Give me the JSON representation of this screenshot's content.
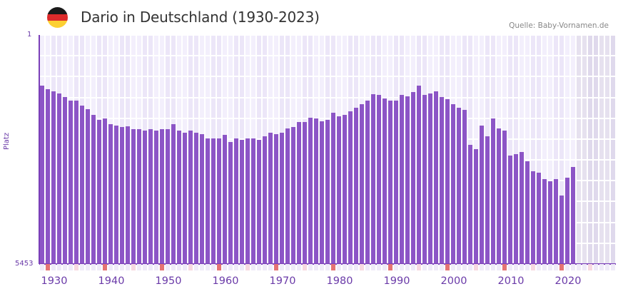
{
  "header": {
    "title": "Dario in Deutschland (1930-2023)",
    "source": "Quelle: Baby-Vornamen.de",
    "flag_colors": [
      "#1a1a1a",
      "#dd2b2b",
      "#fcd032"
    ]
  },
  "colors": {
    "bar": "#8c55c6",
    "axis": "#7a3fb8",
    "grid_a": "#f3effc",
    "grid_b": "#ece6f8",
    "future_a": "#e6e1ef",
    "future_b": "#dfd9ec",
    "decade_marker": "#e57373",
    "half_decade_marker": "#f7d9e1",
    "year_marker": "#efebf8"
  },
  "chart_data": {
    "type": "bar",
    "title": "Dario in Deutschland (1930-2023)",
    "xlabel": "",
    "ylabel": "Platz",
    "y_axis_inverted": true,
    "ylim": [
      5453,
      1
    ],
    "y_ticks": [
      "1",
      "5453"
    ],
    "x_ticks": [
      "1930",
      "1940",
      "1950",
      "1960",
      "1970",
      "1980",
      "1990",
      "2000",
      "2010",
      "2020"
    ],
    "x_range": [
      1928,
      2028
    ],
    "future_shaded_from": 2022,
    "grid": true,
    "legend": null,
    "x": [
      1928,
      1929,
      1930,
      1931,
      1932,
      1933,
      1934,
      1935,
      1936,
      1937,
      1938,
      1939,
      1940,
      1941,
      1942,
      1943,
      1944,
      1945,
      1946,
      1947,
      1948,
      1949,
      1950,
      1951,
      1952,
      1953,
      1954,
      1955,
      1956,
      1957,
      1958,
      1959,
      1960,
      1961,
      1962,
      1963,
      1964,
      1965,
      1966,
      1967,
      1968,
      1969,
      1970,
      1971,
      1972,
      1973,
      1974,
      1975,
      1976,
      1977,
      1978,
      1979,
      1980,
      1981,
      1982,
      1983,
      1984,
      1985,
      1986,
      1987,
      1988,
      1989,
      1990,
      1991,
      1992,
      1993,
      1994,
      1995,
      1996,
      1997,
      1998,
      1999,
      2000,
      2001,
      2002,
      2003,
      2004,
      2005,
      2006,
      2007,
      2008,
      2009,
      2010,
      2011,
      2012,
      2013,
      2014,
      2015,
      2016,
      2017,
      2018,
      2019,
      2020,
      2021
    ],
    "values": [
      1200,
      1285,
      1335,
      1385,
      1470,
      1570,
      1570,
      1690,
      1775,
      1895,
      2030,
      1995,
      2130,
      2165,
      2200,
      2180,
      2235,
      2250,
      2285,
      2235,
      2270,
      2250,
      2250,
      2130,
      2270,
      2320,
      2270,
      2335,
      2370,
      2470,
      2455,
      2455,
      2385,
      2540,
      2455,
      2490,
      2455,
      2455,
      2505,
      2420,
      2320,
      2370,
      2320,
      2220,
      2185,
      2065,
      2080,
      1965,
      1980,
      2050,
      2015,
      1860,
      1930,
      1910,
      1810,
      1725,
      1640,
      1555,
      1405,
      1420,
      1505,
      1555,
      1555,
      1435,
      1455,
      1355,
      1215,
      1420,
      1385,
      1335,
      1470,
      1535,
      1640,
      1725,
      1790,
      2610,
      2710,
      2165,
      2405,
      1995,
      2220,
      2285,
      2865,
      2830,
      2780,
      3000,
      3250,
      3285,
      3425,
      3475,
      3425,
      3830,
      3390,
      3135
    ]
  }
}
